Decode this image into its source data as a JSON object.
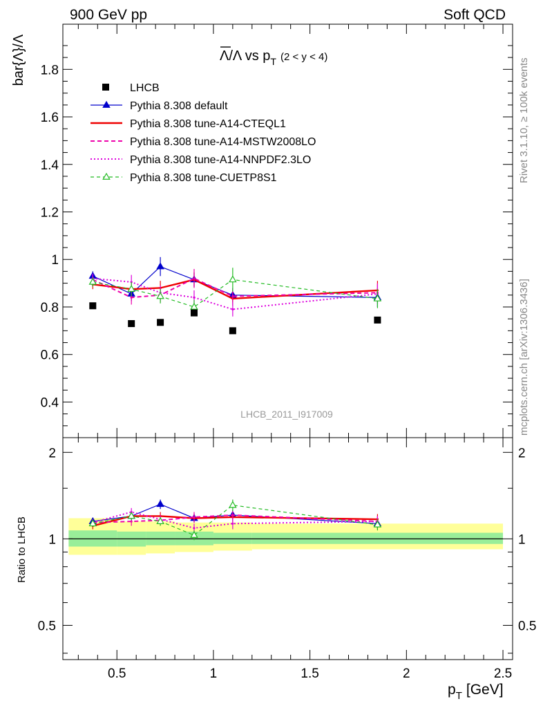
{
  "header": {
    "left_title": "900 GeV pp",
    "right_title": "Soft QCD"
  },
  "side_labels": {
    "rivet": "Rivet 3.1.10, ≥ 100k events",
    "mcplots": "mcplots.cern.ch [arXiv:1306.3436]"
  },
  "chart_data": [
    {
      "type": "scatter",
      "panel": "main",
      "title_main": "Λ/Λ vs p",
      "title_sub": "T",
      "title_range": "(2 < y < 4)",
      "ylabel": "bar{Λ}/Λ",
      "watermark": "LHCB_2011_I917009",
      "xlim": [
        0.22,
        2.55
      ],
      "ylim": [
        0.25,
        1.99
      ],
      "y_ticks": [
        0.4,
        0.6,
        0.8,
        1,
        1.2,
        1.4,
        1.6,
        1.8
      ],
      "y_tick_labels": [
        "0.4",
        "0.6",
        "0.8",
        "1",
        "1.2",
        "1.4",
        "1.6",
        "1.8"
      ],
      "legend": {
        "placement": "top-left",
        "entries": [
          {
            "label": "LHCB",
            "color": "#000000",
            "style": "square"
          },
          {
            "label": "Pythia 8.308 default",
            "color": "#0000cc",
            "style": "solid-triangle"
          },
          {
            "label": "Pythia 8.308 tune-A14-CTEQL1",
            "color": "#ee0000",
            "style": "solid-thick"
          },
          {
            "label": "Pythia 8.308 tune-A14-MSTW2008LO",
            "color": "#ee00aa",
            "style": "dashed"
          },
          {
            "label": "Pythia 8.308 tune-A14-NNPDF2.3LO",
            "color": "#dd00dd",
            "style": "dotted"
          },
          {
            "label": "Pythia 8.308 tune-CUETP8S1",
            "color": "#22bb22",
            "style": "dashed-open-triangle"
          }
        ]
      },
      "data": {
        "name": "LHCB",
        "x": [
          0.375,
          0.575,
          0.725,
          0.9,
          1.1,
          1.85
        ],
        "y": [
          0.805,
          0.73,
          0.735,
          0.775,
          0.7,
          0.745
        ]
      },
      "series": [
        {
          "name": "Pythia 8.308 default",
          "x": [
            0.375,
            0.575,
            0.725,
            0.9,
            1.1,
            1.85
          ],
          "y": [
            0.93,
            0.855,
            0.97,
            0.915,
            0.85,
            0.84
          ],
          "err": [
            0.02,
            0.03,
            0.04,
            0.03,
            0.03,
            0.04
          ]
        },
        {
          "name": "Pythia 8.308 tune-A14-CTEQL1",
          "x": [
            0.375,
            0.575,
            0.725,
            0.9,
            1.1,
            1.85
          ],
          "y": [
            0.895,
            0.875,
            0.88,
            0.915,
            0.835,
            0.87
          ],
          "err": [
            0.02,
            0.03,
            0.03,
            0.03,
            0.03,
            0.04
          ]
        },
        {
          "name": "Pythia 8.308 tune-A14-MSTW2008LO",
          "x": [
            0.375,
            0.575,
            0.725,
            0.9,
            1.1,
            1.85
          ],
          "y": [
            0.915,
            0.84,
            0.85,
            0.92,
            0.845,
            0.86
          ],
          "err": [
            0.02,
            0.03,
            0.03,
            0.04,
            0.03,
            0.04
          ]
        },
        {
          "name": "Pythia 8.308 tune-A14-NNPDF2.3LO",
          "x": [
            0.375,
            0.575,
            0.725,
            0.9,
            1.1,
            1.85
          ],
          "y": [
            0.92,
            0.905,
            0.86,
            0.84,
            0.79,
            0.855
          ],
          "err": [
            0.02,
            0.03,
            0.03,
            0.03,
            0.03,
            0.04
          ]
        },
        {
          "name": "Pythia 8.308 tune-CUETP8S1",
          "x": [
            0.375,
            0.575,
            0.725,
            0.9,
            1.1,
            1.85
          ],
          "y": [
            0.905,
            0.875,
            0.845,
            0.8,
            0.915,
            0.835
          ],
          "err": [
            0.02,
            0.03,
            0.03,
            0.03,
            0.05,
            0.04
          ]
        }
      ]
    },
    {
      "type": "line",
      "panel": "ratio",
      "ylabel": "Ratio to LHCB",
      "xlabel_main": "p",
      "xlabel_sub": "T",
      "xlabel_unit": "[GeV]",
      "xlim": [
        0.22,
        2.55
      ],
      "ylim": [
        0.38,
        2.25
      ],
      "log_y": true,
      "y_ticks": [
        0.5,
        1,
        2
      ],
      "y_tick_labels": [
        "0.5",
        "1",
        "2"
      ],
      "x_ticks": [
        0.5,
        1,
        1.5,
        2,
        2.5
      ],
      "x_tick_labels": [
        "0.5",
        "1",
        "1.5",
        "2",
        "2.5"
      ],
      "reference_line": 1,
      "uncertainty_bands": {
        "bin_edges": [
          0.25,
          0.5,
          0.65,
          0.8,
          1.0,
          1.2,
          2.5
        ],
        "stat_lo": [
          0.94,
          0.94,
          0.95,
          0.95,
          0.96,
          0.96
        ],
        "stat_hi": [
          1.07,
          1.06,
          1.06,
          1.06,
          1.05,
          1.05
        ],
        "total_lo": [
          0.88,
          0.88,
          0.89,
          0.9,
          0.91,
          0.92
        ],
        "total_hi": [
          1.18,
          1.15,
          1.15,
          1.14,
          1.14,
          1.13
        ],
        "stat_color": "#99ee99",
        "total_color": "#ffff99"
      },
      "series": [
        {
          "name": "Pythia 8.308 default",
          "x": [
            0.375,
            0.575,
            0.725,
            0.9,
            1.1,
            1.85
          ],
          "y": [
            1.15,
            1.2,
            1.32,
            1.18,
            1.21,
            1.13
          ],
          "err": [
            0.03,
            0.04,
            0.05,
            0.04,
            0.05,
            0.05
          ]
        },
        {
          "name": "Pythia 8.308 tune-A14-CTEQL1",
          "x": [
            0.375,
            0.575,
            0.725,
            0.9,
            1.1,
            1.85
          ],
          "y": [
            1.11,
            1.2,
            1.2,
            1.18,
            1.19,
            1.17
          ],
          "err": [
            0.03,
            0.04,
            0.04,
            0.04,
            0.05,
            0.05
          ]
        },
        {
          "name": "Pythia 8.308 tune-A14-MSTW2008LO",
          "x": [
            0.375,
            0.575,
            0.725,
            0.9,
            1.1,
            1.85
          ],
          "y": [
            1.14,
            1.15,
            1.16,
            1.19,
            1.21,
            1.15
          ],
          "err": [
            0.03,
            0.04,
            0.04,
            0.05,
            0.05,
            0.05
          ]
        },
        {
          "name": "Pythia 8.308 tune-A14-NNPDF2.3LO",
          "x": [
            0.375,
            0.575,
            0.725,
            0.9,
            1.1,
            1.85
          ],
          "y": [
            1.14,
            1.24,
            1.17,
            1.09,
            1.13,
            1.15
          ],
          "err": [
            0.03,
            0.04,
            0.04,
            0.04,
            0.05,
            0.05
          ]
        },
        {
          "name": "Pythia 8.308 tune-CUETP8S1",
          "x": [
            0.375,
            0.575,
            0.725,
            0.9,
            1.1,
            1.85
          ],
          "y": [
            1.13,
            1.2,
            1.15,
            1.03,
            1.31,
            1.12
          ],
          "err": [
            0.03,
            0.04,
            0.04,
            0.04,
            0.06,
            0.05
          ]
        }
      ]
    }
  ]
}
